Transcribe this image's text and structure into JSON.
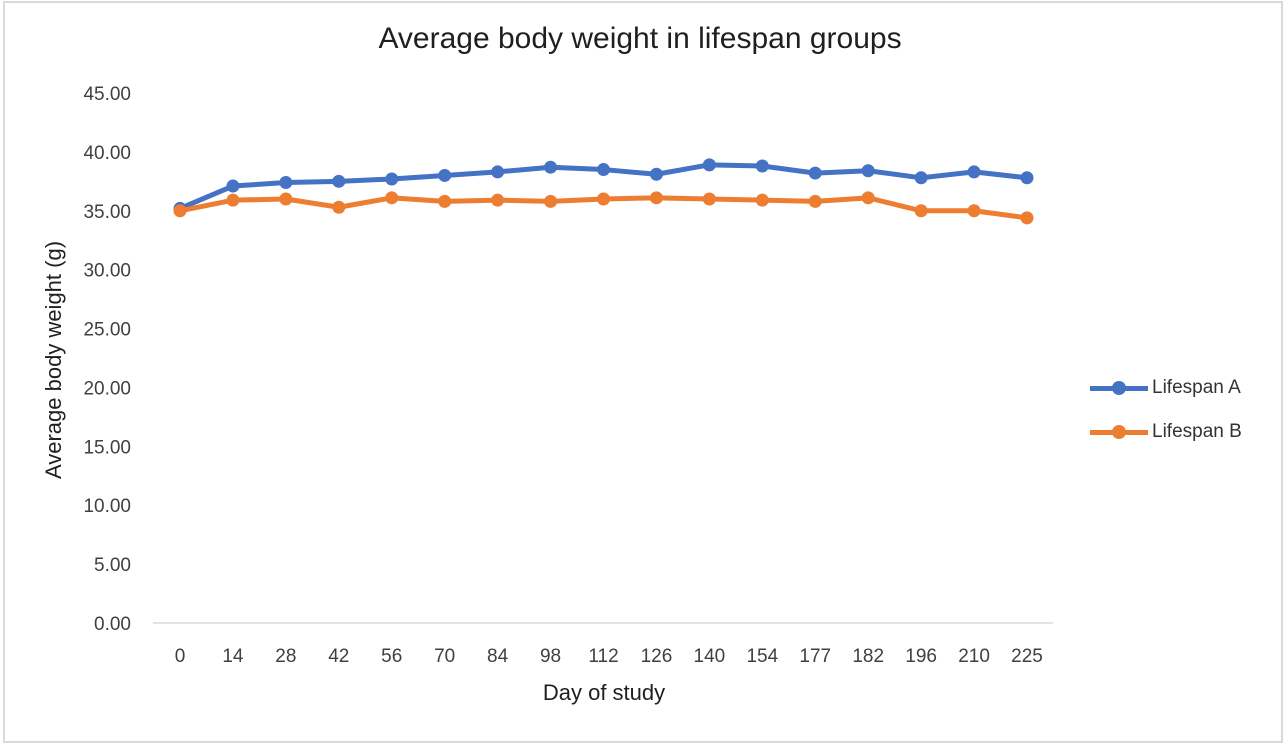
{
  "chart_data": {
    "type": "line",
    "title": "Average body weight in lifespan groups",
    "xlabel": "Day of study",
    "ylabel": "Average body weight (g)",
    "categories": [
      "0",
      "14",
      "28",
      "42",
      "56",
      "70",
      "84",
      "98",
      "112",
      "126",
      "140",
      "154",
      "177",
      "182",
      "196",
      "210",
      "225"
    ],
    "ylim": [
      0,
      45
    ],
    "yticks": [
      "0.00",
      "5.00",
      "10.00",
      "15.00",
      "20.00",
      "25.00",
      "30.00",
      "35.00",
      "40.00",
      "45.00"
    ],
    "grid": false,
    "legend_position": "right",
    "series": [
      {
        "name": "Lifespan A",
        "color": "#4472c4",
        "values": [
          35.2,
          37.1,
          37.4,
          37.5,
          37.7,
          38.0,
          38.3,
          38.7,
          38.5,
          38.1,
          38.9,
          38.8,
          38.2,
          38.4,
          37.8,
          38.3,
          37.8
        ]
      },
      {
        "name": "Lifespan B",
        "color": "#ed7d31",
        "values": [
          35.0,
          35.9,
          36.0,
          35.3,
          36.1,
          35.8,
          35.9,
          35.8,
          36.0,
          36.1,
          36.0,
          35.9,
          35.8,
          36.1,
          35.0,
          35.0,
          34.4
        ]
      }
    ]
  }
}
